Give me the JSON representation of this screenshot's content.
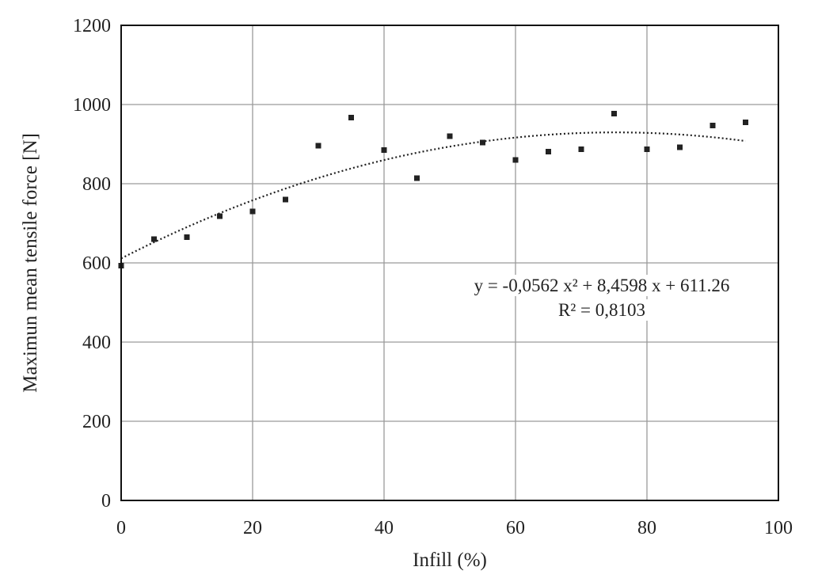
{
  "chart_data": {
    "type": "scatter",
    "xlabel": "Infill (%)",
    "ylabel": "Maximun mean tensile force [N]",
    "xlim": [
      0,
      100
    ],
    "ylim": [
      0,
      1200
    ],
    "x_ticks": [
      0,
      20,
      40,
      60,
      80,
      100
    ],
    "y_ticks": [
      0,
      200,
      400,
      600,
      800,
      1000,
      1200
    ],
    "grid": true,
    "series": [
      {
        "x": [
          0,
          5,
          10,
          15,
          20,
          25,
          30,
          35,
          40,
          45,
          50,
          55,
          60,
          65,
          70,
          75,
          80,
          85,
          90,
          95
        ],
        "y": [
          593,
          660,
          665,
          718,
          730,
          760,
          896,
          967,
          885,
          814,
          920,
          904,
          860,
          881,
          887,
          977,
          887,
          892,
          947,
          955
        ]
      }
    ],
    "trendline": {
      "type": "polynomial",
      "coefficients": [
        -0.0562,
        8.4598,
        611.26
      ],
      "x_range": [
        0,
        95
      ]
    },
    "annotations": {
      "equation": "y = -0,0562 x² + 8,4598 x + 611.26",
      "r_squared": "R² = 0,8103"
    },
    "colors": {
      "points": "#222222",
      "grid": "#9a9a9a",
      "frame": "#111111"
    }
  }
}
